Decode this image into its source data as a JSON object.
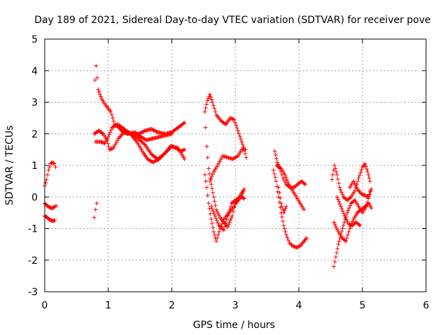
{
  "chart_data": {
    "type": "scatter",
    "title": "Day 189 of 2021, Sidereal Day-to-day VTEC variation (SDTVAR) for receiver pove",
    "xlabel": "GPS time / hours",
    "ylabel": "SDTVAR / TECUs",
    "xlim": [
      0,
      6
    ],
    "ylim": [
      -3,
      5
    ],
    "xticks": [
      "0",
      "1",
      "2",
      "3",
      "4",
      "5",
      "6"
    ],
    "yticks": [
      "-3",
      "-2",
      "-1",
      "0",
      "1",
      "2",
      "3",
      "4",
      "5"
    ],
    "grid": true,
    "legend": "none",
    "marker": "plus",
    "color": "#ff0000",
    "tracks": [
      [
        [
          0.0,
          0.35
        ],
        [
          0.03,
          0.55
        ],
        [
          0.06,
          0.85
        ],
        [
          0.09,
          1.05
        ],
        [
          0.12,
          1.1
        ],
        [
          0.15,
          1.05
        ],
        [
          0.17,
          0.95
        ]
      ],
      [
        [
          0.0,
          -0.2
        ],
        [
          0.04,
          -0.28
        ],
        [
          0.08,
          -0.33
        ],
        [
          0.12,
          -0.36
        ],
        [
          0.16,
          -0.3
        ],
        [
          0.18,
          -0.28
        ]
      ],
      [
        [
          0.0,
          -0.6
        ],
        [
          0.04,
          -0.65
        ],
        [
          0.08,
          -0.72
        ],
        [
          0.12,
          -0.76
        ],
        [
          0.16,
          -0.74
        ]
      ],
      [
        [
          0.78,
          -0.65
        ],
        [
          0.8,
          -0.4
        ],
        [
          0.82,
          -0.2
        ]
      ],
      [
        [
          0.79,
          3.7
        ],
        [
          0.81,
          4.15
        ],
        [
          0.84,
          3.4
        ],
        [
          0.9,
          3.1
        ],
        [
          0.96,
          2.9
        ],
        [
          1.04,
          2.7
        ],
        [
          1.1,
          2.3
        ],
        [
          1.2,
          2.15
        ],
        [
          1.32,
          2.05
        ],
        [
          1.45,
          1.9
        ],
        [
          1.58,
          1.65
        ],
        [
          1.68,
          1.35
        ],
        [
          1.78,
          1.2
        ],
        [
          1.9,
          1.4
        ],
        [
          2.0,
          1.6
        ],
        [
          2.1,
          1.55
        ],
        [
          2.2,
          1.2
        ]
      ],
      [
        [
          0.78,
          2.0
        ],
        [
          0.85,
          2.1
        ],
        [
          0.92,
          2.0
        ],
        [
          0.98,
          1.8
        ],
        [
          1.02,
          1.5
        ],
        [
          1.08,
          1.55
        ],
        [
          1.16,
          1.85
        ],
        [
          1.25,
          2.05
        ],
        [
          1.35,
          2.0
        ],
        [
          1.45,
          1.75
        ],
        [
          1.55,
          1.4
        ],
        [
          1.62,
          1.2
        ],
        [
          1.7,
          1.1
        ],
        [
          1.8,
          1.2
        ],
        [
          1.9,
          1.4
        ],
        [
          1.98,
          1.62
        ],
        [
          2.06,
          1.55
        ],
        [
          2.14,
          1.45
        ],
        [
          2.2,
          1.5
        ]
      ],
      [
        [
          0.8,
          1.75
        ],
        [
          0.88,
          1.75
        ],
        [
          0.95,
          1.7
        ],
        [
          1.0,
          1.9
        ],
        [
          1.06,
          2.2
        ],
        [
          1.15,
          2.3
        ],
        [
          1.25,
          2.15
        ],
        [
          1.38,
          1.95
        ],
        [
          1.48,
          2.0
        ],
        [
          1.58,
          2.1
        ],
        [
          1.68,
          2.15
        ],
        [
          1.78,
          2.05
        ],
        [
          1.9,
          2.0
        ],
        [
          2.0,
          2.05
        ],
        [
          2.1,
          2.2
        ],
        [
          2.2,
          2.35
        ]
      ],
      [
        [
          1.2,
          2.1
        ],
        [
          1.3,
          2.0
        ],
        [
          1.42,
          2.05
        ],
        [
          1.52,
          1.9
        ],
        [
          1.6,
          1.8
        ],
        [
          1.7,
          1.85
        ],
        [
          1.8,
          1.9
        ],
        [
          1.9,
          1.95
        ],
        [
          2.0,
          2.0
        ]
      ],
      [
        [
          2.52,
          2.7
        ],
        [
          2.56,
          3.05
        ],
        [
          2.6,
          3.25
        ],
        [
          2.64,
          3.0
        ],
        [
          2.7,
          2.6
        ],
        [
          2.78,
          2.4
        ],
        [
          2.85,
          2.3
        ],
        [
          2.92,
          2.5
        ],
        [
          2.98,
          2.45
        ],
        [
          3.04,
          2.1
        ],
        [
          3.1,
          1.75
        ],
        [
          3.14,
          1.5
        ],
        [
          3.17,
          1.25
        ]
      ],
      [
        [
          2.53,
          2.2
        ],
        [
          2.55,
          1.6
        ],
        [
          2.58,
          0.9
        ],
        [
          2.62,
          0.4
        ],
        [
          2.66,
          0.0
        ],
        [
          2.7,
          -0.4
        ],
        [
          2.76,
          -0.65
        ],
        [
          2.82,
          -0.8
        ],
        [
          2.88,
          -0.95
        ],
        [
          2.95,
          -0.6
        ],
        [
          3.0,
          -0.2
        ],
        [
          3.05,
          -0.1
        ],
        [
          3.1,
          0.05
        ],
        [
          3.14,
          0.25
        ]
      ],
      [
        [
          2.52,
          0.7
        ],
        [
          2.55,
          0.3
        ],
        [
          2.58,
          -0.2
        ],
        [
          2.62,
          -0.7
        ],
        [
          2.66,
          -1.1
        ],
        [
          2.7,
          -1.4
        ],
        [
          2.76,
          -1.0
        ],
        [
          2.82,
          -0.7
        ],
        [
          2.9,
          -0.5
        ],
        [
          2.98,
          -0.3
        ],
        [
          3.06,
          0.0
        ],
        [
          3.12,
          0.2
        ]
      ],
      [
        [
          2.6,
          0.5
        ],
        [
          2.66,
          0.8
        ],
        [
          2.72,
          1.0
        ],
        [
          2.8,
          1.3
        ],
        [
          2.88,
          1.25
        ],
        [
          2.96,
          1.2
        ],
        [
          3.04,
          1.3
        ],
        [
          3.1,
          1.5
        ],
        [
          3.16,
          1.5
        ]
      ],
      [
        [
          2.62,
          -0.3
        ],
        [
          2.68,
          -0.6
        ],
        [
          2.74,
          -0.9
        ],
        [
          2.82,
          -1.05
        ],
        [
          2.88,
          -0.6
        ],
        [
          2.94,
          -0.2
        ],
        [
          3.0,
          -0.1
        ],
        [
          3.08,
          0.0
        ],
        [
          3.14,
          -0.05
        ]
      ],
      [
        [
          3.62,
          1.45
        ],
        [
          3.66,
          1.1
        ],
        [
          3.7,
          0.9
        ],
        [
          3.75,
          0.6
        ],
        [
          3.8,
          0.4
        ],
        [
          3.86,
          0.3
        ],
        [
          3.92,
          0.3
        ],
        [
          3.98,
          0.4
        ],
        [
          4.04,
          0.5
        ],
        [
          4.1,
          0.4
        ]
      ],
      [
        [
          3.6,
          0.85
        ],
        [
          3.64,
          0.5
        ],
        [
          3.68,
          0.0
        ],
        [
          3.72,
          -0.5
        ],
        [
          3.76,
          -0.9
        ],
        [
          3.8,
          -1.2
        ],
        [
          3.85,
          -1.45
        ],
        [
          3.9,
          -1.55
        ],
        [
          3.96,
          -1.6
        ],
        [
          4.02,
          -1.55
        ],
        [
          4.08,
          -1.4
        ],
        [
          4.12,
          -1.3
        ]
      ],
      [
        [
          3.65,
          1.0
        ],
        [
          3.72,
          0.9
        ],
        [
          3.78,
          0.7
        ],
        [
          3.84,
          0.4
        ],
        [
          3.9,
          0.2
        ],
        [
          3.96,
          0.0
        ],
        [
          4.02,
          -0.2
        ],
        [
          4.08,
          -0.4
        ]
      ],
      [
        [
          3.68,
          0.3
        ],
        [
          3.72,
          -0.2
        ],
        [
          3.76,
          -0.5
        ],
        [
          3.8,
          -0.3
        ]
      ],
      [
        [
          4.55,
          -2.2
        ],
        [
          4.58,
          -1.9
        ],
        [
          4.62,
          -1.5
        ],
        [
          4.66,
          -1.2
        ],
        [
          4.7,
          -0.9
        ],
        [
          4.76,
          -0.5
        ],
        [
          4.82,
          -0.2
        ],
        [
          4.88,
          -0.1
        ],
        [
          4.94,
          -0.3
        ],
        [
          5.0,
          -0.5
        ],
        [
          5.06,
          -0.3
        ],
        [
          5.12,
          0.2
        ]
      ],
      [
        [
          4.52,
          0.55
        ],
        [
          4.56,
          1.0
        ],
        [
          4.6,
          0.7
        ],
        [
          4.64,
          0.3
        ],
        [
          4.7,
          0.0
        ],
        [
          4.76,
          -0.1
        ],
        [
          4.82,
          0.0
        ],
        [
          4.88,
          0.2
        ],
        [
          4.94,
          0.6
        ],
        [
          5.0,
          0.95
        ],
        [
          5.04,
          1.05
        ],
        [
          5.08,
          0.8
        ],
        [
          5.12,
          0.5
        ]
      ],
      [
        [
          4.55,
          -0.8
        ],
        [
          4.62,
          -1.1
        ],
        [
          4.68,
          -1.3
        ],
        [
          4.74,
          -1.4
        ],
        [
          4.8,
          -1.0
        ],
        [
          4.86,
          -0.7
        ],
        [
          4.92,
          -0.5
        ],
        [
          4.98,
          -0.4
        ],
        [
          5.04,
          -0.3
        ],
        [
          5.1,
          -0.2
        ],
        [
          5.14,
          -0.35
        ]
      ],
      [
        [
          4.8,
          0.3
        ],
        [
          4.86,
          0.5
        ],
        [
          4.92,
          0.25
        ],
        [
          4.98,
          0.1
        ],
        [
          5.04,
          0.05
        ],
        [
          5.1,
          0.0
        ],
        [
          5.14,
          0.25
        ]
      ],
      [
        [
          4.6,
          0.0
        ],
        [
          4.66,
          -0.3
        ],
        [
          4.72,
          -0.6
        ],
        [
          4.78,
          -0.85
        ],
        [
          4.84,
          -0.9
        ],
        [
          4.9,
          -0.8
        ],
        [
          4.96,
          -0.9
        ]
      ]
    ]
  }
}
